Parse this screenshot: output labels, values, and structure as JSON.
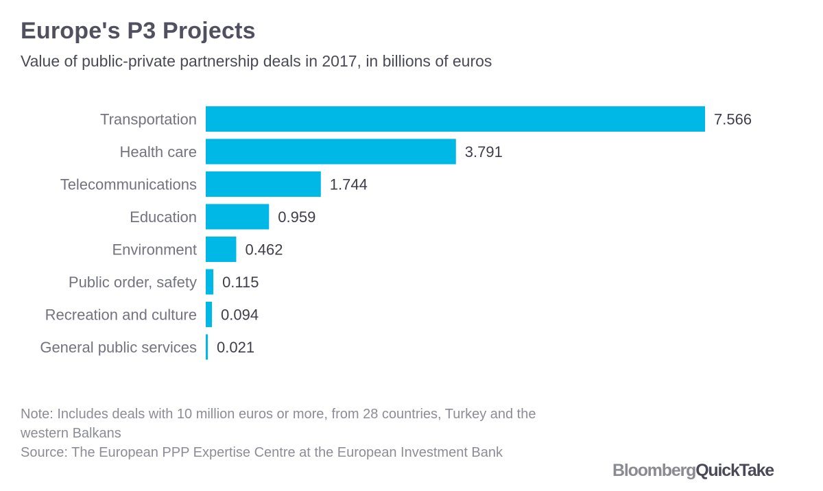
{
  "header": {
    "title": "Europe's P3 Projects",
    "subtitle": "Value of public-private partnership deals in 2017, in billions of euros"
  },
  "chart_data": {
    "type": "bar",
    "orientation": "horizontal",
    "title": "Europe's P3 Projects",
    "subtitle": "Value of public-private partnership deals in 2017, in billions of euros",
    "xlabel": "",
    "ylabel": "",
    "grid": false,
    "xlim": [
      0,
      7.566
    ],
    "categories": [
      "Transportation",
      "Health care",
      "Telecommunications",
      "Education",
      "Environment",
      "Public order, safety",
      "Recreation and culture",
      "General public services"
    ],
    "values": [
      7.566,
      3.791,
      1.744,
      0.959,
      0.462,
      0.115,
      0.094,
      0.021
    ],
    "value_labels": [
      "7.566",
      "3.791",
      "1.744",
      "0.959",
      "0.462",
      "0.115",
      "0.094",
      "0.021"
    ],
    "bar_color": "#00b8e6"
  },
  "footer": {
    "note": "Note: Includes deals with 10 million euros or more, from 28 countries, Turkey and the western Balkans",
    "source": "Source: The European PPP Expertise Centre at the European Investment Bank",
    "brand_part1": "Bloomberg",
    "brand_part2": "QuickTake"
  }
}
